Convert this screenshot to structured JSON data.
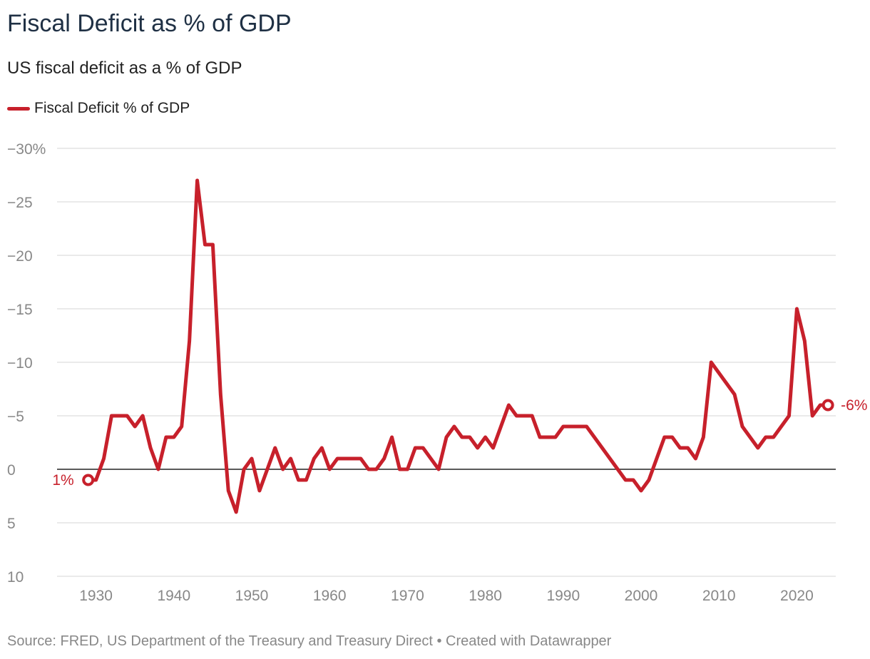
{
  "header": {
    "title": "Fiscal Deficit as % of GDP",
    "subtitle": "US fiscal deficit as a % of GDP"
  },
  "legend": {
    "label": "Fiscal Deficit % of GDP"
  },
  "footer": {
    "source": "Source: FRED, US Department of the Treasury and Treasury Direct • Created with Datawrapper"
  },
  "colors": {
    "series": "#c7202b",
    "grid": "#dddddd",
    "zero_line": "#222222",
    "tick_text": "#888888",
    "title": "#1f3044"
  },
  "chart_data": {
    "type": "line",
    "title": "Fiscal Deficit as % of GDP",
    "subtitle": "US fiscal deficit as a % of GDP",
    "xlabel": "",
    "ylabel": "",
    "y_axis_reversed": true,
    "ylim": [
      -30,
      10
    ],
    "xlim": [
      1929,
      2024
    ],
    "grid": true,
    "legend_position": "top-left",
    "y_ticks": [
      {
        "value": -30,
        "label": "−30%"
      },
      {
        "value": -25,
        "label": "−25"
      },
      {
        "value": -20,
        "label": "−20"
      },
      {
        "value": -15,
        "label": "−15"
      },
      {
        "value": -10,
        "label": "−10"
      },
      {
        "value": -5,
        "label": "−5"
      },
      {
        "value": 0,
        "label": "0"
      },
      {
        "value": 5,
        "label": "5"
      },
      {
        "value": 10,
        "label": "10"
      }
    ],
    "x_ticks": [
      {
        "value": 1930,
        "label": "1930"
      },
      {
        "value": 1940,
        "label": "1940"
      },
      {
        "value": 1950,
        "label": "1950"
      },
      {
        "value": 1960,
        "label": "1960"
      },
      {
        "value": 1970,
        "label": "1970"
      },
      {
        "value": 1980,
        "label": "1980"
      },
      {
        "value": 1990,
        "label": "1990"
      },
      {
        "value": 2000,
        "label": "2000"
      },
      {
        "value": 2010,
        "label": "2010"
      },
      {
        "value": 2020,
        "label": "2020"
      }
    ],
    "series": [
      {
        "name": "Fiscal Deficit % of GDP",
        "color": "#c7202b",
        "x": [
          1929,
          1930,
          1931,
          1932,
          1933,
          1934,
          1935,
          1936,
          1937,
          1938,
          1939,
          1940,
          1941,
          1942,
          1943,
          1944,
          1945,
          1946,
          1947,
          1948,
          1949,
          1950,
          1951,
          1952,
          1953,
          1954,
          1955,
          1956,
          1957,
          1958,
          1959,
          1960,
          1961,
          1962,
          1963,
          1964,
          1965,
          1966,
          1967,
          1968,
          1969,
          1970,
          1971,
          1972,
          1973,
          1974,
          1975,
          1976,
          1977,
          1978,
          1979,
          1980,
          1981,
          1982,
          1983,
          1984,
          1985,
          1986,
          1987,
          1988,
          1989,
          1990,
          1991,
          1992,
          1993,
          1994,
          1995,
          1996,
          1997,
          1998,
          1999,
          2000,
          2001,
          2002,
          2003,
          2004,
          2005,
          2006,
          2007,
          2008,
          2009,
          2010,
          2011,
          2012,
          2013,
          2014,
          2015,
          2016,
          2017,
          2018,
          2019,
          2020,
          2021,
          2022,
          2023,
          2024
        ],
        "values": [
          1,
          1,
          -1,
          -5,
          -5,
          -5,
          -4,
          -5,
          -2,
          0,
          -3,
          -3,
          -4,
          -12,
          -27,
          -21,
          -21,
          -7,
          2,
          4,
          0,
          -1,
          2,
          0,
          -2,
          0,
          -1,
          1,
          1,
          -1,
          -2,
          0,
          -1,
          -1,
          -1,
          -1,
          0,
          0,
          -1,
          -3,
          0,
          0,
          -2,
          -2,
          -1,
          0,
          -3,
          -4,
          -3,
          -3,
          -2,
          -3,
          -2,
          -4,
          -6,
          -5,
          -5,
          -5,
          -3,
          -3,
          -3,
          -4,
          -4,
          -4,
          -4,
          -3,
          -2,
          -1,
          0,
          1,
          1,
          2,
          1,
          -1,
          -3,
          -3,
          -2,
          -2,
          -1,
          -3,
          -10,
          -9,
          -8,
          -7,
          -4,
          -3,
          -2,
          -3,
          -3,
          -4,
          -5,
          -15,
          -12,
          -5,
          -6,
          -6
        ]
      }
    ],
    "annotations": [
      {
        "label": "1%",
        "x": 1929,
        "y": 1,
        "side": "left"
      },
      {
        "label": "-6%",
        "x": 2024,
        "y": -6,
        "side": "right"
      }
    ]
  }
}
